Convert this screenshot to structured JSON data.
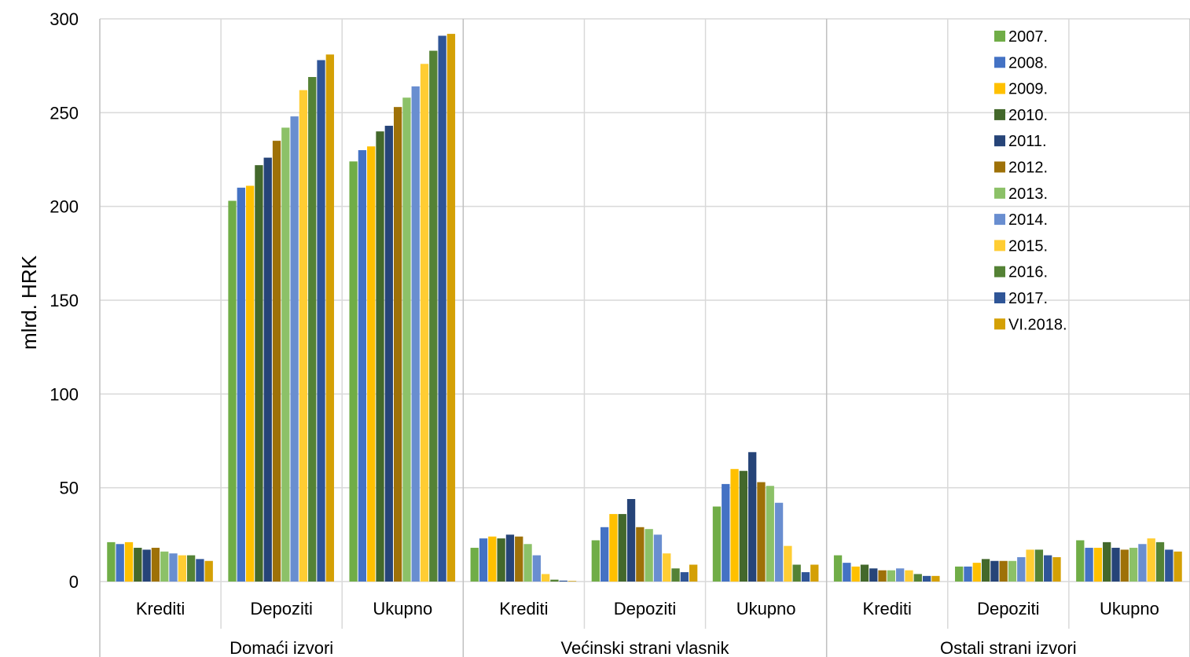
{
  "chart_data": {
    "type": "bar",
    "title": "",
    "ylabel": "mlrd. HRK",
    "ylim": [
      0,
      300
    ],
    "yticks": [
      0,
      50,
      100,
      150,
      200,
      250,
      300
    ],
    "grid": true,
    "legend_position": "top-right",
    "groups": [
      "Domaći izvori",
      "Većinski strani vlasnik",
      "Ostali strani izvori"
    ],
    "categories": [
      "Krediti",
      "Depoziti",
      "Ukupno",
      "Krediti",
      "Depoziti",
      "Ukupno",
      "Krediti",
      "Depoziti",
      "Ukupno"
    ],
    "series": [
      {
        "name": "2007.",
        "color": "#70ad47",
        "values": [
          21,
          203,
          224,
          18,
          22,
          40,
          14,
          8,
          22
        ]
      },
      {
        "name": "2008.",
        "color": "#4472c4",
        "values": [
          20,
          210,
          230,
          23,
          29,
          52,
          10,
          8,
          18
        ]
      },
      {
        "name": "2009.",
        "color": "#ffc000",
        "values": [
          21,
          211,
          232,
          24,
          36,
          60,
          8,
          10,
          18
        ]
      },
      {
        "name": "2010.",
        "color": "#43682b",
        "values": [
          18,
          222,
          240,
          23,
          36,
          59,
          9,
          12,
          21
        ]
      },
      {
        "name": "2011.",
        "color": "#264478",
        "values": [
          17,
          226,
          243,
          25,
          44,
          69,
          7,
          11,
          18
        ]
      },
      {
        "name": "2012.",
        "color": "#9e7108",
        "values": [
          18,
          235,
          253,
          24,
          29,
          53,
          6,
          11,
          17
        ]
      },
      {
        "name": "2013.",
        "color": "#8cc168",
        "values": [
          16,
          242,
          258,
          20,
          28,
          51,
          6,
          11,
          18
        ]
      },
      {
        "name": "2014.",
        "color": "#698ed0",
        "values": [
          15,
          248,
          264,
          14,
          25,
          42,
          7,
          13,
          20
        ]
      },
      {
        "name": "2015.",
        "color": "#ffcd33",
        "values": [
          14,
          262,
          276,
          4,
          15,
          19,
          6,
          17,
          23
        ]
      },
      {
        "name": "2016.",
        "color": "#548235",
        "values": [
          14,
          269,
          283,
          1,
          7,
          9,
          4,
          17,
          21
        ]
      },
      {
        "name": "2017.",
        "color": "#2f5597",
        "values": [
          12,
          278,
          291,
          0.5,
          5,
          5,
          3,
          14,
          17
        ]
      },
      {
        "name": "VI.2018.",
        "color": "#d4a005",
        "values": [
          11,
          281,
          292,
          0.3,
          9,
          9,
          3,
          13,
          16
        ]
      }
    ]
  }
}
